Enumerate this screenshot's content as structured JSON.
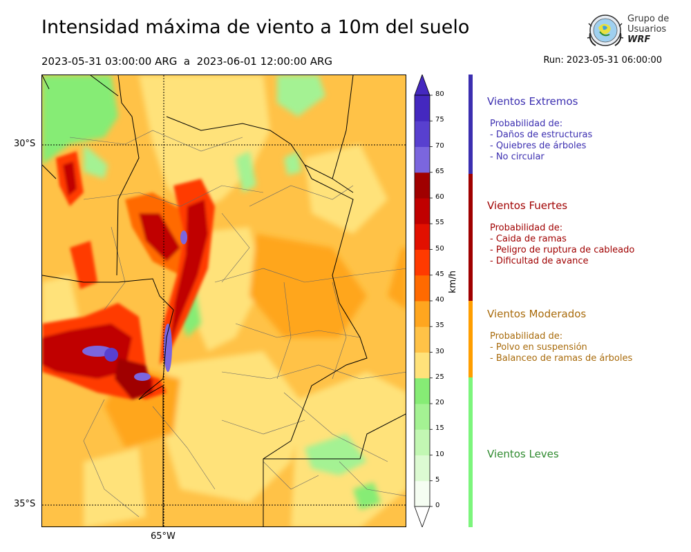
{
  "header": {
    "title": "Intensidad máxima de viento a 10m del suelo",
    "period": "2023-05-31 03:00:00 ARG  a  2023-06-01 12:00:00 ARG",
    "run": "Run: 2023-05-31 06:00:00"
  },
  "logo": {
    "line1": "Grupo de",
    "line2": "Usuarios",
    "line3": "WRF"
  },
  "map": {
    "lat_labels": [
      "30°S",
      "35°S"
    ],
    "lon_labels": [
      "65°W"
    ]
  },
  "colorbar": {
    "unit": "km/h",
    "ticks": [
      "0",
      "5",
      "10",
      "15",
      "20",
      "25",
      "30",
      "35",
      "40",
      "45",
      "50",
      "55",
      "60",
      "65",
      "70",
      "75",
      "80"
    ],
    "colors": [
      "#f5fdf2",
      "#dcfad2",
      "#c2f7b3",
      "#a4f293",
      "#86ec75",
      "#ffe27a",
      "#ffc247",
      "#ffa61f",
      "#ff6a00",
      "#ff3a00",
      "#e21000",
      "#c00000",
      "#a00000",
      "#7b66de",
      "#5840cf",
      "#4428bf"
    ]
  },
  "categories": [
    {
      "title": "Vientos Extremos",
      "color": "#3b2eb0",
      "lines": [
        "Probabilidad de:",
        "- Daños de estructuras",
        "- Quiebres de árboles",
        "- No circular"
      ]
    },
    {
      "title": "Vientos Fuertes",
      "color": "#a00000",
      "lines": [
        "Probabilidad de:",
        "- Caida de ramas",
        "- Peligro de ruptura de cableado",
        "- Dificultad de avance"
      ]
    },
    {
      "title": "Vientos Moderados",
      "color": "#a86a0a",
      "bar_color": "#ff9e00",
      "lines": [
        "Probabilidad de:",
        "- Polvo en suspensión",
        "- Balanceo de ramas de árboles"
      ]
    },
    {
      "title": "Vientos Leves",
      "color": "#2e8a2e",
      "bar_color": "#7cf57c",
      "lines": []
    }
  ]
}
